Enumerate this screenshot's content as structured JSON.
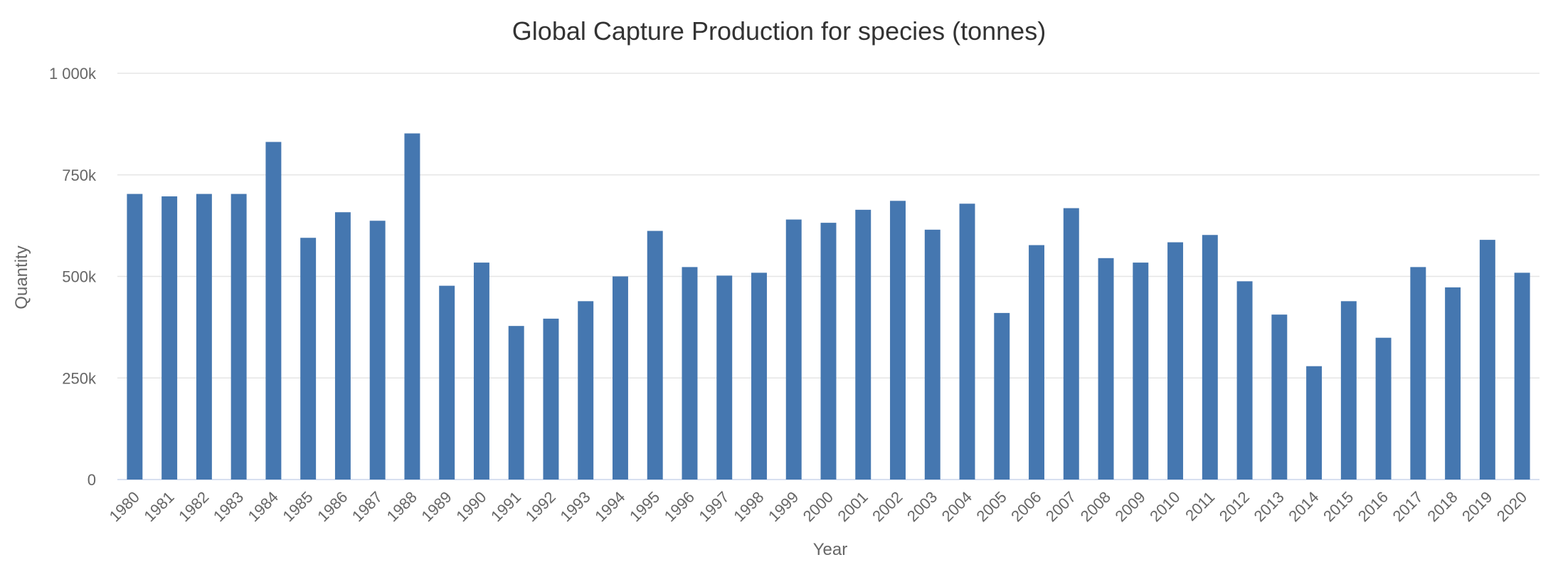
{
  "chart_data": {
    "type": "bar",
    "title": "Global Capture Production for species (tonnes)",
    "xlabel": "Year",
    "ylabel": "Quantity",
    "ylim": [
      0,
      1000000
    ],
    "yticks": [
      0,
      250000,
      500000,
      750000,
      1000000
    ],
    "ytick_labels": [
      "0",
      "250k",
      "500k",
      "750k",
      "1 000k"
    ],
    "categories": [
      "1980",
      "1981",
      "1982",
      "1983",
      "1984",
      "1985",
      "1986",
      "1987",
      "1988",
      "1989",
      "1990",
      "1991",
      "1992",
      "1993",
      "1994",
      "1995",
      "1996",
      "1997",
      "1998",
      "1999",
      "2000",
      "2001",
      "2002",
      "2003",
      "2004",
      "2005",
      "2006",
      "2007",
      "2008",
      "2009",
      "2010",
      "2011",
      "2012",
      "2013",
      "2014",
      "2015",
      "2016",
      "2017",
      "2018",
      "2019",
      "2020"
    ],
    "series": [
      {
        "color": "#4577b0",
        "values": [
          703000,
          697000,
          703000,
          703000,
          831000,
          595000,
          658000,
          637000,
          852000,
          477000,
          534000,
          378000,
          396000,
          439000,
          500000,
          612000,
          523000,
          502000,
          509000,
          640000,
          632000,
          664000,
          686000,
          615000,
          679000,
          410000,
          577000,
          668000,
          545000,
          534000,
          584000,
          602000,
          488000,
          406000,
          279000,
          439000,
          349000,
          523000,
          473000,
          590000,
          509000
        ]
      }
    ],
    "grid": true,
    "legend": "none"
  }
}
